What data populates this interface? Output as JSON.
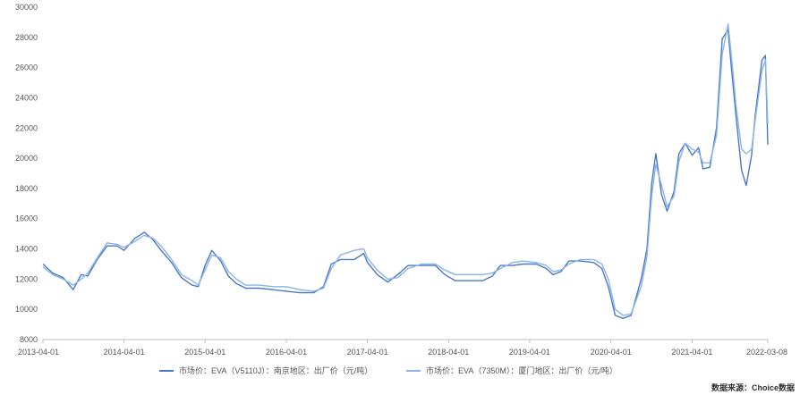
{
  "chart_data": {
    "type": "line",
    "title": "",
    "xlabel": "",
    "ylabel": "",
    "ylim": [
      8000,
      30000
    ],
    "y_ticks": [
      8000,
      10000,
      12000,
      14000,
      16000,
      18000,
      20000,
      22000,
      24000,
      26000,
      28000,
      30000
    ],
    "y_tick_labels": [
      "8000",
      "10000",
      "12000",
      "14000",
      "16000",
      "18000",
      "20000",
      "22000",
      "24000",
      "26000",
      "28000",
      "30000"
    ],
    "x_tick_labels": [
      "2013-04-01",
      "2014-04-01",
      "2015-04-01",
      "2016-04-01",
      "2017-04-01",
      "2018-04-01",
      "2019-04-01",
      "2020-04-01",
      "2021-04-01",
      "2022-03-08"
    ],
    "x_ticks": [
      "2013-04-01",
      "2014-04-01",
      "2015-04-01",
      "2016-04-01",
      "2017-04-01",
      "2018-04-01",
      "2019-04-01",
      "2020-04-01",
      "2021-04-01",
      "2022-03-08"
    ],
    "grid": false,
    "legend_position": "bottom",
    "series": [
      {
        "name": "市场价：EVA（V5110J）：南京地区：出厂价（元/吨）",
        "color": "#4a78c8",
        "points": [
          [
            "2013-04-01",
            13000
          ],
          [
            "2013-05-15",
            12400
          ],
          [
            "2013-07-01",
            12100
          ],
          [
            "2013-08-15",
            11300
          ],
          [
            "2013-09-20",
            12300
          ],
          [
            "2013-10-20",
            12200
          ],
          [
            "2013-12-01",
            13300
          ],
          [
            "2014-01-15",
            14200
          ],
          [
            "2014-03-01",
            14200
          ],
          [
            "2014-04-01",
            13900
          ],
          [
            "2014-05-20",
            14700
          ],
          [
            "2014-07-01",
            15100
          ],
          [
            "2014-08-10",
            14600
          ],
          [
            "2014-09-15",
            13900
          ],
          [
            "2014-11-01",
            13100
          ],
          [
            "2014-12-15",
            12100
          ],
          [
            "2015-02-01",
            11600
          ],
          [
            "2015-03-01",
            11500
          ],
          [
            "2015-04-01",
            12900
          ],
          [
            "2015-05-01",
            13900
          ],
          [
            "2015-06-10",
            13200
          ],
          [
            "2015-07-15",
            12200
          ],
          [
            "2015-08-20",
            11700
          ],
          [
            "2015-10-01",
            11400
          ],
          [
            "2015-12-01",
            11400
          ],
          [
            "2016-02-01",
            11300
          ],
          [
            "2016-04-01",
            11200
          ],
          [
            "2016-06-01",
            11100
          ],
          [
            "2016-08-01",
            11100
          ],
          [
            "2016-09-15",
            11500
          ],
          [
            "2016-10-20",
            13000
          ],
          [
            "2016-12-01",
            13300
          ],
          [
            "2017-02-01",
            13300
          ],
          [
            "2017-03-15",
            13700
          ],
          [
            "2017-04-01",
            13100
          ],
          [
            "2017-05-15",
            12300
          ],
          [
            "2017-07-01",
            11800
          ],
          [
            "2017-08-15",
            12300
          ],
          [
            "2017-10-01",
            12900
          ],
          [
            "2017-12-01",
            12900
          ],
          [
            "2018-02-01",
            12900
          ],
          [
            "2018-03-15",
            12300
          ],
          [
            "2018-05-01",
            11900
          ],
          [
            "2018-07-01",
            11900
          ],
          [
            "2018-09-01",
            11900
          ],
          [
            "2018-10-15",
            12200
          ],
          [
            "2018-11-20",
            12900
          ],
          [
            "2019-01-15",
            12900
          ],
          [
            "2019-03-01",
            13000
          ],
          [
            "2019-05-01",
            13000
          ],
          [
            "2019-06-15",
            12700
          ],
          [
            "2019-07-15",
            12300
          ],
          [
            "2019-08-20",
            12500
          ],
          [
            "2019-09-25",
            13200
          ],
          [
            "2019-11-15",
            13200
          ],
          [
            "2020-01-15",
            13100
          ],
          [
            "2020-02-20",
            12700
          ],
          [
            "2020-03-20",
            11500
          ],
          [
            "2020-04-20",
            9600
          ],
          [
            "2020-05-25",
            9400
          ],
          [
            "2020-07-01",
            9600
          ],
          [
            "2020-08-15",
            12000
          ],
          [
            "2020-09-10",
            14000
          ],
          [
            "2020-10-01",
            18300
          ],
          [
            "2020-10-20",
            20300
          ],
          [
            "2020-11-15",
            17600
          ],
          [
            "2020-12-10",
            16500
          ],
          [
            "2021-01-10",
            17800
          ],
          [
            "2021-02-01",
            20300
          ],
          [
            "2021-03-01",
            21000
          ],
          [
            "2021-04-01",
            20200
          ],
          [
            "2021-05-01",
            20700
          ],
          [
            "2021-05-20",
            19300
          ],
          [
            "2021-06-20",
            19400
          ],
          [
            "2021-07-20",
            22000
          ],
          [
            "2021-08-15",
            27900
          ],
          [
            "2021-09-10",
            28500
          ],
          [
            "2021-09-25",
            26000
          ],
          [
            "2021-10-15",
            22900
          ],
          [
            "2021-11-10",
            19200
          ],
          [
            "2021-12-01",
            18200
          ],
          [
            "2021-12-25",
            20200
          ],
          [
            "2022-01-10",
            22800
          ],
          [
            "2022-02-10",
            26500
          ],
          [
            "2022-02-25",
            26800
          ],
          [
            "2022-03-08",
            20900
          ]
        ]
      },
      {
        "name": "市场价：EVA（7350M）：厦门地区：出厂价（元/吨）",
        "color": "#8ab4e8",
        "points": [
          [
            "2013-04-01",
            12800
          ],
          [
            "2013-05-15",
            12300
          ],
          [
            "2013-07-01",
            12000
          ],
          [
            "2013-08-15",
            11600
          ],
          [
            "2013-09-20",
            12000
          ],
          [
            "2013-10-20",
            12400
          ],
          [
            "2013-12-01",
            13400
          ],
          [
            "2014-01-15",
            14400
          ],
          [
            "2014-03-01",
            14300
          ],
          [
            "2014-04-01",
            14100
          ],
          [
            "2014-05-20",
            14500
          ],
          [
            "2014-07-01",
            14900
          ],
          [
            "2014-08-10",
            14700
          ],
          [
            "2014-09-15",
            14200
          ],
          [
            "2014-11-01",
            13300
          ],
          [
            "2014-12-15",
            12300
          ],
          [
            "2015-02-01",
            11900
          ],
          [
            "2015-03-01",
            11600
          ],
          [
            "2015-04-01",
            12600
          ],
          [
            "2015-05-01",
            13600
          ],
          [
            "2015-06-10",
            13400
          ],
          [
            "2015-07-15",
            12500
          ],
          [
            "2015-08-20",
            12000
          ],
          [
            "2015-10-01",
            11600
          ],
          [
            "2015-12-01",
            11600
          ],
          [
            "2016-02-01",
            11500
          ],
          [
            "2016-04-01",
            11500
          ],
          [
            "2016-06-01",
            11300
          ],
          [
            "2016-08-01",
            11200
          ],
          [
            "2016-09-15",
            11400
          ],
          [
            "2016-10-20",
            12700
          ],
          [
            "2016-12-01",
            13600
          ],
          [
            "2017-02-01",
            13900
          ],
          [
            "2017-03-15",
            14000
          ],
          [
            "2017-04-01",
            13400
          ],
          [
            "2017-05-15",
            12600
          ],
          [
            "2017-07-01",
            12000
          ],
          [
            "2017-08-15",
            12100
          ],
          [
            "2017-10-01",
            12700
          ],
          [
            "2017-12-01",
            13000
          ],
          [
            "2018-02-01",
            13000
          ],
          [
            "2018-03-15",
            12600
          ],
          [
            "2018-05-01",
            12300
          ],
          [
            "2018-07-01",
            12300
          ],
          [
            "2018-09-01",
            12300
          ],
          [
            "2018-10-15",
            12400
          ],
          [
            "2018-11-20",
            12700
          ],
          [
            "2019-01-15",
            13100
          ],
          [
            "2019-03-01",
            13200
          ],
          [
            "2019-05-01",
            13100
          ],
          [
            "2019-06-15",
            12900
          ],
          [
            "2019-07-15",
            12500
          ],
          [
            "2019-08-20",
            12600
          ],
          [
            "2019-09-25",
            13000
          ],
          [
            "2019-11-15",
            13300
          ],
          [
            "2020-01-15",
            13300
          ],
          [
            "2020-02-20",
            13000
          ],
          [
            "2020-03-20",
            12000
          ],
          [
            "2020-04-20",
            10000
          ],
          [
            "2020-05-25",
            9600
          ],
          [
            "2020-07-01",
            9700
          ],
          [
            "2020-08-15",
            11500
          ],
          [
            "2020-09-10",
            13500
          ],
          [
            "2020-10-01",
            17500
          ],
          [
            "2020-10-20",
            19600
          ],
          [
            "2020-11-15",
            18200
          ],
          [
            "2020-12-10",
            16800
          ],
          [
            "2021-01-10",
            17500
          ],
          [
            "2021-02-01",
            19800
          ],
          [
            "2021-03-01",
            21000
          ],
          [
            "2021-04-01",
            20600
          ],
          [
            "2021-05-01",
            20400
          ],
          [
            "2021-05-20",
            19700
          ],
          [
            "2021-06-20",
            19700
          ],
          [
            "2021-07-20",
            21500
          ],
          [
            "2021-08-15",
            26900
          ],
          [
            "2021-09-10",
            28900
          ],
          [
            "2021-09-25",
            26800
          ],
          [
            "2021-10-15",
            23600
          ],
          [
            "2021-11-10",
            20600
          ],
          [
            "2021-12-01",
            20300
          ],
          [
            "2021-12-25",
            20600
          ],
          [
            "2022-01-10",
            22500
          ],
          [
            "2022-02-10",
            25800
          ],
          [
            "2022-02-25",
            26500
          ],
          [
            "2022-03-08",
            22300
          ]
        ]
      }
    ],
    "source": "数据来源：Choice数据"
  }
}
